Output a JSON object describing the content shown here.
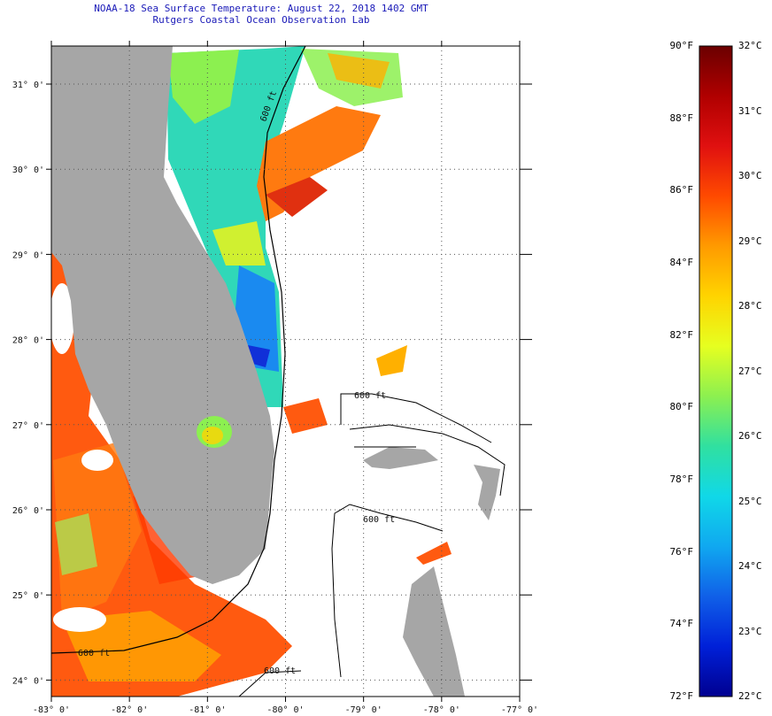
{
  "title": {
    "line1": "NOAA-18 Sea Surface Temperature:  August 22, 2018 1402 GMT",
    "line2": "Rutgers Coastal Ocean Observation Lab"
  },
  "axes": {
    "lon_labels": [
      "-83° 0'",
      "-82° 0'",
      "-81° 0'",
      "-80° 0'",
      "-79° 0'",
      "-78° 0'",
      "-77° 0'"
    ],
    "lat_labels": [
      "31° 0'",
      "30° 0'",
      "29° 0'",
      "28° 0'",
      "27° 0'",
      "26° 0'",
      "25° 0'",
      "24° 0'"
    ]
  },
  "contours": {
    "label": "600 ft"
  },
  "colorbar": {
    "f_labels": [
      "90°F",
      "88°F",
      "86°F",
      "84°F",
      "82°F",
      "80°F",
      "78°F",
      "76°F",
      "74°F",
      "72°F"
    ],
    "c_labels": [
      "32°C",
      "31°C",
      "30°C",
      "29°C",
      "28°C",
      "27°C",
      "26°C",
      "25°C",
      "24°C",
      "23°C",
      "22°C"
    ],
    "colors": [
      "#6b0000",
      "#b00000",
      "#e01010",
      "#ff4a00",
      "#ff9a00",
      "#ffd400",
      "#e6ff20",
      "#8cf050",
      "#30e0a0",
      "#10d8e8",
      "#10a8f0",
      "#1060e8",
      "#0020d8",
      "#000090"
    ]
  },
  "colors": {
    "land": "#a6a6a6",
    "cloud": "#ffffff"
  }
}
